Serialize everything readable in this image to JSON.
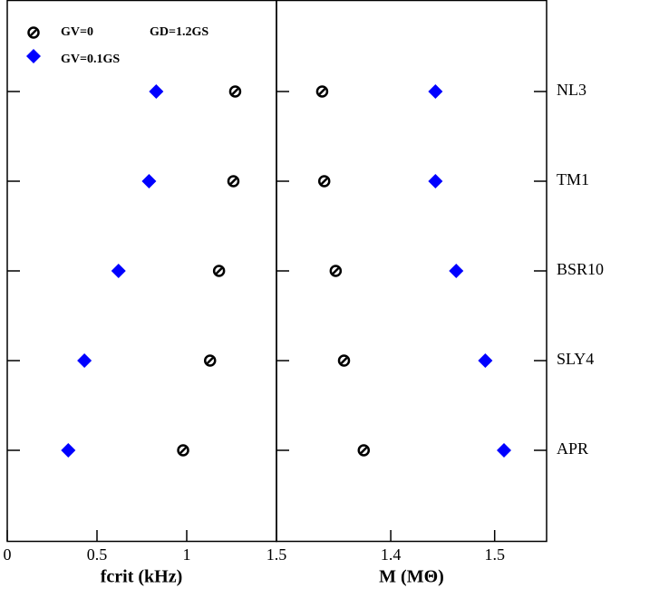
{
  "chart_data": [
    {
      "type": "scatter",
      "xlabel": "fcrit (kHz)",
      "annotation": "GD=1.2GS",
      "xlim": [
        0,
        1.5
      ],
      "xticks": [
        0,
        0.5,
        1,
        1.5
      ],
      "series": [
        {
          "name": "GV=0",
          "color": "#000000",
          "marker": "circle",
          "values": [
            1.27,
            1.26,
            1.18,
            1.13,
            0.98
          ]
        },
        {
          "name": "GV=0.1GS",
          "color": "#0000ff",
          "marker": "diamond",
          "values": [
            0.83,
            0.79,
            0.62,
            0.43,
            0.34
          ]
        }
      ]
    },
    {
      "type": "scatter",
      "xlabel": "M (MΘ)",
      "categories": [
        "NL3",
        "TM1",
        "BSR10",
        "SLY4",
        "APR"
      ],
      "xlim": [
        1.29,
        1.55
      ],
      "xticks": [
        1.4,
        1.5
      ],
      "series": [
        {
          "color": "#000000",
          "marker": "circle",
          "values": [
            1.334,
            1.336,
            1.347,
            1.355,
            1.374
          ]
        },
        {
          "color": "#0000ff",
          "marker": "diamond",
          "values": [
            1.443,
            1.443,
            1.463,
            1.491,
            1.509
          ]
        }
      ]
    }
  ]
}
